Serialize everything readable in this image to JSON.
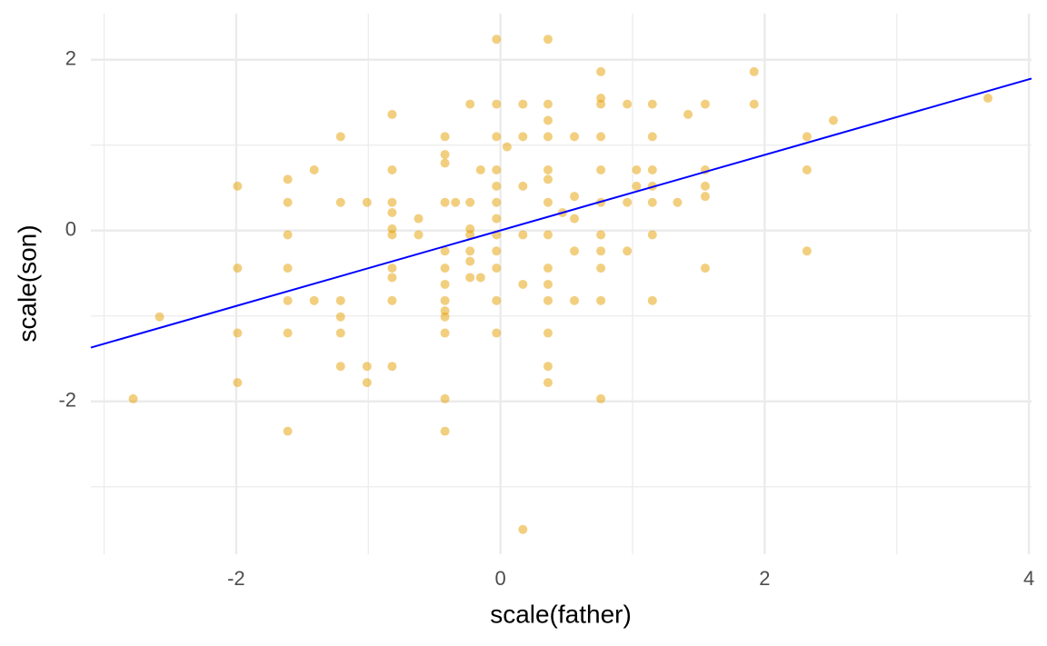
{
  "chart_data": {
    "type": "scatter",
    "x_label": "scale(father)",
    "y_label": "scale(son)",
    "x": [
      -2.78,
      -2.58,
      -1.99,
      -1.99,
      -1.99,
      -1.99,
      -1.61,
      -1.61,
      -1.61,
      -1.61,
      -1.61,
      -1.61,
      -1.61,
      -1.41,
      -1.41,
      -1.21,
      -1.21,
      -1.21,
      -1.21,
      -1.21,
      -1.21,
      -1.01,
      -1.01,
      -1.01,
      -0.82,
      -0.82,
      -0.82,
      -0.82,
      -0.82,
      -0.82,
      -0.82,
      -0.82,
      -0.82,
      -0.82,
      -0.62,
      -0.62,
      -0.42,
      -0.42,
      -0.42,
      -0.42,
      -0.42,
      -0.42,
      -0.42,
      -0.42,
      -0.42,
      -0.42,
      -0.42,
      -0.42,
      -0.42,
      -0.34,
      -0.23,
      -0.23,
      -0.23,
      -0.23,
      -0.23,
      -0.23,
      -0.23,
      -0.15,
      -0.15,
      -0.03,
      -0.03,
      -0.03,
      -0.03,
      -0.03,
      -0.03,
      -0.03,
      -0.03,
      -0.03,
      -0.03,
      -0.03,
      -0.03,
      0.05,
      0.17,
      0.17,
      0.17,
      0.17,
      0.17,
      0.17,
      0.36,
      0.36,
      0.36,
      0.36,
      0.36,
      0.36,
      0.36,
      0.36,
      0.36,
      0.36,
      0.36,
      0.36,
      0.36,
      0.36,
      0.47,
      0.56,
      0.56,
      0.56,
      0.56,
      0.56,
      0.76,
      0.76,
      0.76,
      0.76,
      0.76,
      0.76,
      0.76,
      0.76,
      0.76,
      0.76,
      0.76,
      0.96,
      0.96,
      0.96,
      1.03,
      1.03,
      1.15,
      1.15,
      1.15,
      1.15,
      1.15,
      1.15,
      1.15,
      1.34,
      1.42,
      1.55,
      1.55,
      1.55,
      1.55,
      1.55,
      1.92,
      1.92,
      2.32,
      2.32,
      2.32,
      2.52,
      3.69
    ],
    "values": [
      -1.97,
      -1.01,
      0.52,
      -0.44,
      -1.2,
      -1.78,
      0.6,
      0.33,
      -0.05,
      -0.44,
      -0.82,
      -1.2,
      -2.35,
      0.71,
      -0.82,
      1.1,
      0.33,
      -0.82,
      -1.01,
      -1.2,
      -1.59,
      0.33,
      -1.59,
      -1.78,
      1.36,
      0.71,
      0.33,
      0.21,
      0.02,
      -0.05,
      -0.44,
      -0.55,
      -0.82,
      -1.59,
      0.14,
      -0.05,
      1.1,
      0.89,
      0.79,
      0.33,
      -0.24,
      -0.44,
      -0.63,
      -0.82,
      -0.94,
      -1.01,
      -1.2,
      -1.97,
      -2.35,
      0.33,
      1.48,
      0.33,
      0.02,
      -0.05,
      -0.24,
      -0.36,
      -0.55,
      0.71,
      -0.55,
      2.24,
      1.48,
      1.1,
      0.71,
      0.52,
      0.33,
      0.14,
      -0.05,
      -0.24,
      -0.44,
      -0.82,
      -1.2,
      0.98,
      1.48,
      1.1,
      0.52,
      -0.05,
      -0.63,
      -3.5,
      2.24,
      1.48,
      1.29,
      1.1,
      0.71,
      0.6,
      0.33,
      -0.05,
      -0.44,
      -0.63,
      -0.82,
      -1.2,
      -1.59,
      -1.78,
      0.21,
      1.1,
      0.4,
      0.14,
      -0.24,
      -0.82,
      1.86,
      1.55,
      1.48,
      1.1,
      0.71,
      0.33,
      -0.05,
      -0.24,
      -0.44,
      -0.82,
      -1.97,
      1.48,
      0.33,
      -0.24,
      0.71,
      0.52,
      1.48,
      1.1,
      0.71,
      0.52,
      0.33,
      -0.05,
      -0.82,
      0.33,
      1.36,
      1.48,
      0.71,
      0.52,
      0.4,
      -0.44,
      1.86,
      1.48,
      1.1,
      0.71,
      -0.24,
      1.29,
      1.55
    ],
    "color": "#E69F00",
    "fit_line": {
      "x": [
        -3.1,
        4.02
      ],
      "values": [
        -1.37,
        1.78
      ],
      "color": "#0000FF"
    },
    "xlim": [
      -3.1,
      4.02
    ],
    "ylim": [
      -3.79,
      2.54
    ],
    "xticks": [
      -2,
      0,
      2,
      4
    ],
    "yticks": [
      -2,
      0,
      2
    ],
    "x_minor_ticks": [
      -3,
      -1,
      1,
      3
    ],
    "y_minor_ticks": [
      -3,
      -1,
      1
    ],
    "grid": true
  }
}
